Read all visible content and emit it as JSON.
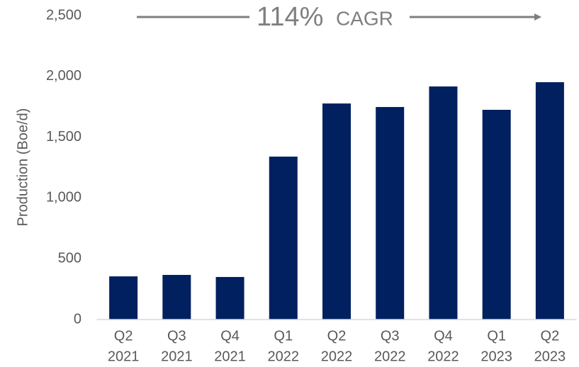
{
  "chart_data": {
    "type": "bar",
    "annotations": [
      "114%",
      "CAGR"
    ],
    "y_label": "Production (Boe/d)",
    "categories": [
      [
        "Q2",
        "2021"
      ],
      [
        "Q3",
        "2021"
      ],
      [
        "Q4",
        "2021"
      ],
      [
        "Q1",
        "2022"
      ],
      [
        "Q2",
        "2022"
      ],
      [
        "Q3",
        "2022"
      ],
      [
        "Q4",
        "2022"
      ],
      [
        "Q1",
        "2023"
      ],
      [
        "Q2",
        "2023"
      ]
    ],
    "values": [
      355,
      367,
      350,
      1340,
      1777,
      1748,
      1917,
      1725,
      1952
    ],
    "color": "#002060",
    "ylim": [
      0,
      2500
    ],
    "yticks": [
      0,
      500,
      {
        "value": 1000,
        "label": "1,000"
      },
      {
        "value": 1500,
        "label": "1,500"
      },
      {
        "value": 2000,
        "label": "2,000"
      },
      {
        "value": 2500,
        "label": "2,500"
      }
    ],
    "grid": false
  }
}
